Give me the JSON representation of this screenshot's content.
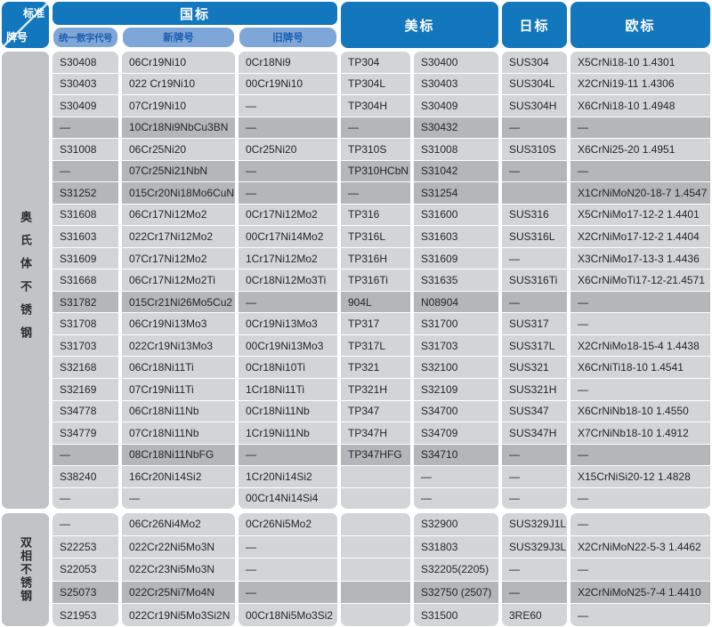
{
  "corner": {
    "top": "标准",
    "bottom": "牌号"
  },
  "header": {
    "gb": "国标",
    "gb_sub": [
      "统一数字代号",
      "新牌号",
      "旧牌号"
    ],
    "us": "美标",
    "jp": "日标",
    "eu": "欧标"
  },
  "colors": {
    "header_blue": "#1377bd",
    "pill_bg": "#7ea6d9",
    "pill_text": "#1b5fae",
    "cell_bg": "#d3d4d6",
    "cell_highlight": "#b4b6ba",
    "side_bg": "#c2c3c6",
    "cell_text": "#232527"
  },
  "sections": [
    {
      "group": "奥氏体不锈钢",
      "rows": [
        {
          "highlight": false,
          "cells": [
            "S30408",
            "06Cr19Ni10",
            "0Cr18Ni9",
            "TP304",
            "S30400",
            "SUS304",
            "X5CrNi18-10 1.4301"
          ]
        },
        {
          "highlight": false,
          "cells": [
            "S30403",
            "022 Cr19Ni10",
            "00Cr19Ni10",
            "TP304L",
            "S30403",
            "SUS304L",
            "X2CrNi19-11  1.4306"
          ]
        },
        {
          "highlight": false,
          "cells": [
            "S30409",
            "07Cr19Ni10",
            "—",
            "TP304H",
            "S30409",
            "SUS304H",
            "X6CrNi18-10  1.4948"
          ]
        },
        {
          "highlight": true,
          "cells": [
            "—",
            "10Cr18Ni9NbCu3BN",
            "—",
            "—",
            "S30432",
            "—",
            "—"
          ]
        },
        {
          "highlight": false,
          "cells": [
            "S31008",
            "06Cr25Ni20",
            "0Cr25Ni20",
            "TP310S",
            "S31008",
            "SUS310S",
            "X6CrNi25-20 1.4951"
          ]
        },
        {
          "highlight": true,
          "cells": [
            "—",
            "07Cr25Ni21NbN",
            "—",
            "TP310HCbN",
            "S31042",
            "—",
            "—"
          ]
        },
        {
          "highlight": true,
          "cells": [
            "S31252",
            "015Cr20Ni18Mo6CuN",
            "—",
            "—",
            "S31254",
            "",
            "X1CrNiMoN20-18-7 1.4547"
          ]
        },
        {
          "highlight": false,
          "cells": [
            "S31608",
            "06Cr17Ni12Mo2",
            "0Cr17Ni12Mo2",
            "TP316",
            "S31600",
            "SUS316",
            "X5CrNiMo17-12-2 1.4401"
          ]
        },
        {
          "highlight": false,
          "cells": [
            "S31603",
            "022Cr17Ni12Mo2",
            "00Cr17Ni14Mo2",
            "TP316L",
            "S31603",
            "SUS316L",
            "X2CrNiMo17-12-2 1.4404"
          ]
        },
        {
          "highlight": false,
          "cells": [
            "S31609",
            "07Cr17Ni12Mo2",
            "1Cr17Ni12Mo2",
            "TP316H",
            "S31609",
            "—",
            "X3CrNiMo17-13-3 1.4436"
          ]
        },
        {
          "highlight": false,
          "cells": [
            "S31668",
            "06Cr17Ni12Mo2Ti",
            "0Cr18Ni12Mo3Ti",
            "TP316Ti",
            "S31635",
            "SUS316Ti",
            "X6CrNiMoTi17-12-21.4571"
          ]
        },
        {
          "highlight": true,
          "cells": [
            "S31782",
            "015Cr21Ni26Mo5Cu2",
            "—",
            "904L",
            "N08904",
            "—",
            "—"
          ]
        },
        {
          "highlight": false,
          "cells": [
            "S31708",
            "06Cr19Ni13Mo3",
            "0Cr19Ni13Mo3",
            "TP317",
            "S31700",
            "SUS317",
            "—"
          ]
        },
        {
          "highlight": false,
          "cells": [
            "S31703",
            "022Cr19Ni13Mo3",
            "00Cr19Ni13Mo3",
            "TP317L",
            "S31703",
            "SUS317L",
            "X2CrNiMo18-15-4 1.4438"
          ]
        },
        {
          "highlight": false,
          "cells": [
            "S32168",
            "06Cr18Ni11Ti",
            "0Cr18Ni10Ti",
            "TP321",
            "S32100",
            "SUS321",
            "X6CrNiTi18-10 1.4541"
          ]
        },
        {
          "highlight": false,
          "cells": [
            "S32169",
            "07Cr19Ni11Ti",
            "1Cr18Ni11Ti",
            "TP321H",
            "S32109",
            "SUS321H",
            "—"
          ]
        },
        {
          "highlight": false,
          "cells": [
            "S34778",
            "06Cr18Ni11Nb",
            "0Cr18Ni11Nb",
            "TP347",
            "S34700",
            "SUS347",
            "X6CrNiNb18-10 1.4550"
          ]
        },
        {
          "highlight": false,
          "cells": [
            "S34779",
            "07Cr18Ni11Nb",
            "1Cr19Ni11Nb",
            "TP347H",
            "S34709",
            "SUS347H",
            "X7CrNiNb18-10 1.4912"
          ]
        },
        {
          "highlight": true,
          "cells": [
            "—",
            "08Cr18Ni11NbFG",
            "—",
            "TP347HFG",
            "S34710",
            "—",
            "—"
          ]
        },
        {
          "highlight": false,
          "cells": [
            "S38240",
            "16Cr20Ni14Si2",
            "1Cr20Ni14Si2",
            "",
            "—",
            "—",
            "X15CrNiSi20-12 1.4828"
          ]
        },
        {
          "highlight": false,
          "cells": [
            "—",
            "—",
            "00Cr14Ni14Si4",
            "",
            "—",
            "—",
            "—"
          ]
        }
      ]
    },
    {
      "group": "双相不锈钢",
      "rows": [
        {
          "highlight": false,
          "cells": [
            "—",
            "06Cr26Ni4Mo2",
            "0Cr26Ni5Mo2",
            "",
            "S32900",
            "SUS329J1L",
            "—"
          ]
        },
        {
          "highlight": false,
          "cells": [
            "S22253",
            "022Cr22Ni5Mo3N",
            "—",
            "",
            "S31803",
            "SUS329J3L",
            "X2CrNiMoN22-5-3 1.4462"
          ]
        },
        {
          "highlight": false,
          "cells": [
            "S22053",
            "022Cr23Ni5Mo3N",
            "—",
            "",
            "S32205(2205)",
            "—",
            "—"
          ]
        },
        {
          "highlight": true,
          "cells": [
            "S25073",
            "022Cr25Ni7Mo4N",
            "—",
            "",
            "S32750 (2507)",
            "—",
            "X2CrNiMoN25-7-4 1.4410"
          ]
        },
        {
          "highlight": false,
          "cells": [
            "S21953",
            "022Cr19Ni5Mo3Si2N",
            "00Cr18Ni5Mo3Si2",
            "",
            "S31500",
            "3RE60",
            "—"
          ]
        }
      ]
    }
  ]
}
